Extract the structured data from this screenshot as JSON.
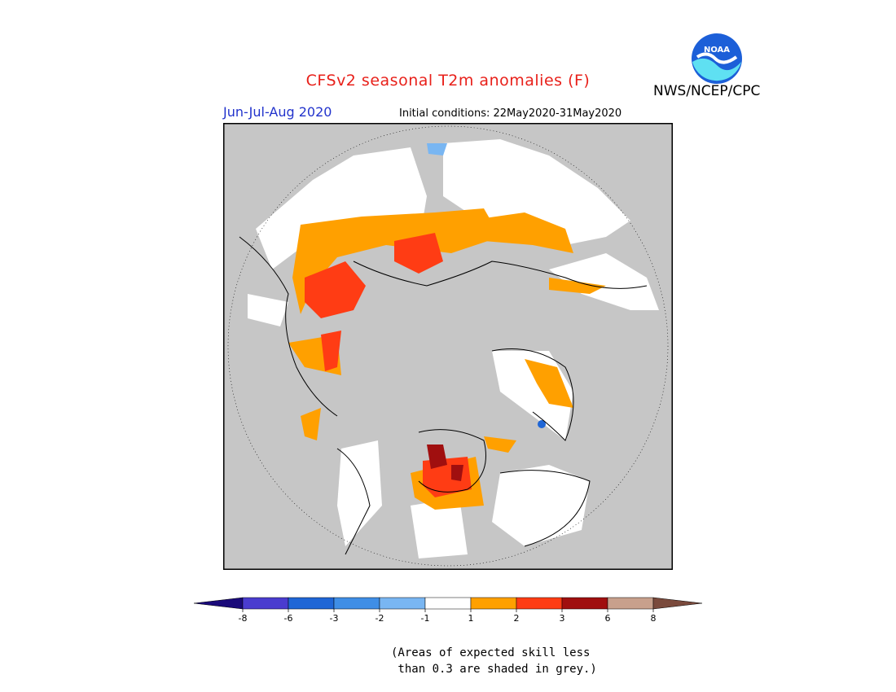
{
  "header": {
    "title": "CFSv2 seasonal T2m anomalies (F)",
    "period": "Jun-Jul-Aug 2020",
    "initial_conditions": "Initial conditions: 22May2020-31May2020",
    "agency": "NWS/NCEP/CPC",
    "logo_text": "NOAA"
  },
  "map": {
    "projection": "north-polar-stereographic",
    "skill_mask_color": "#c6c6c6",
    "land_outline_color": "#000000",
    "ocean_color": "#ffffff"
  },
  "legend": {
    "labels": [
      "-8",
      "-6",
      "-3",
      "-2",
      "-1",
      "1",
      "2",
      "3",
      "6",
      "8"
    ],
    "colors": [
      "#1a0a7a",
      "#4a3ccf",
      "#1f66d6",
      "#3f8ee6",
      "#79b6f2",
      "#ffffff",
      "#ffa000",
      "#ff3c14",
      "#a00f0f",
      "#c8a08c",
      "#7a4a3c"
    ]
  },
  "note": "(Areas of expected skill less\n than 0.3 are shaded in grey.)"
}
